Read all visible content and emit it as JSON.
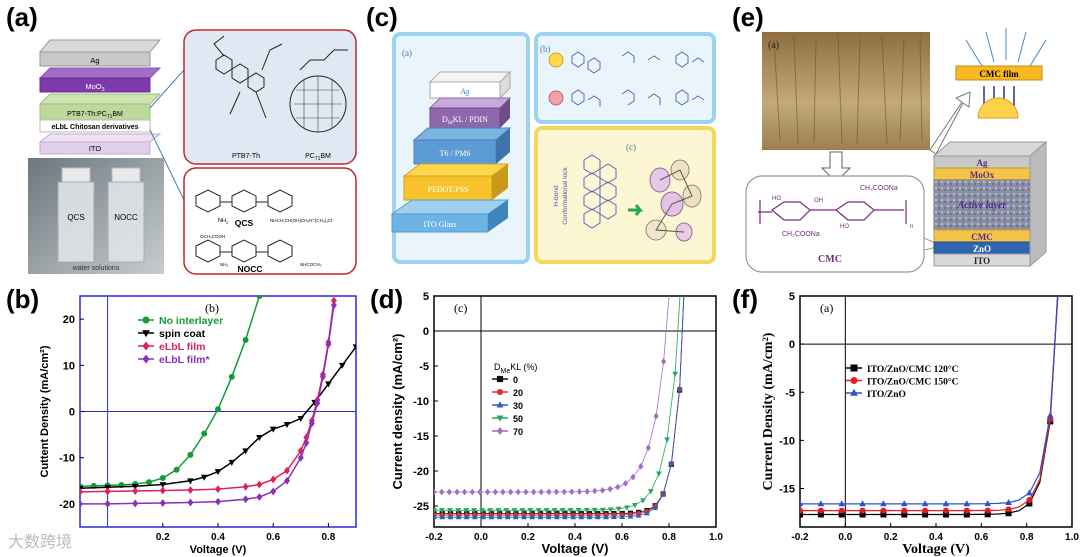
{
  "figure_labels": {
    "a": "(a)",
    "b": "(b)",
    "c": "(c)",
    "d": "(d)",
    "e": "(e)",
    "f": "(f)"
  },
  "panel_a": {
    "layers": [
      "Ag",
      "MoO",
      "PTB7-Th:PC",
      "eLbL Chitosan derivatives",
      "ITO"
    ],
    "layer_subscripts": [
      "3",
      "71",
      "BM"
    ],
    "mol1": "PTB7-Th",
    "mol2": "PC",
    "mol2_sub": "71",
    "mol2_suffix": "BM",
    "vial1": "QCS",
    "vial2": "NOCC",
    "photo_caption": "water solutions",
    "chem1_label": "QCS",
    "chem2_label": "NOCC",
    "chem1_sub": "NH",
    "chem1_n": "2",
    "chem1_tail": "NHCH₂CH(OH)CH₂N⁺(CH₃)₃Cl⁻",
    "chem2_top": "OCH₂COOH",
    "chem2_tail": "NHCOCH₃",
    "chem2_nh": "NH₂"
  },
  "panel_c": {
    "sub_a": "(a)",
    "sub_b": "(b)",
    "sub_c": "(c)",
    "layers": [
      "Ag",
      "D",
      "KL / PDIN",
      "T6 / PM6",
      "PEDOT:PSS",
      "ITO Glass"
    ],
    "layer_sub": "M",
    "lock_label_1": "H-bond",
    "lock_label_2": "Conformational lock"
  },
  "panel_e": {
    "sub_a": "(a)",
    "film": "CMC film",
    "layers": [
      "Ag",
      "MoOx",
      "Active layer",
      "CMC",
      "ZnO",
      "ITO"
    ],
    "cmc_label": "CMC",
    "group1": "CH₂COONa",
    "group2": "CH₂COONa",
    "ho1": "HO",
    "oh1": "OH",
    "ho2": "HO",
    "n_sub": "n"
  },
  "chart_data": [
    {
      "id": "b",
      "type": "line",
      "inner_label": "(b)",
      "xlabel": "Voltage (V)",
      "ylabel": "Cuttent Density (mA/cm²)",
      "xlim": [
        -0.1,
        0.9
      ],
      "ylim": [
        -25,
        25
      ],
      "xticks": [
        0.2,
        0.4,
        0.6,
        0.8
      ],
      "xtick_labels": [
        "0.2",
        "0.4",
        "0.6",
        "0.8"
      ],
      "yticks": [
        -20,
        -10,
        0,
        10,
        20
      ],
      "ytick_labels": [
        "-20",
        "-10",
        "0",
        "10",
        "20"
      ],
      "legend_position": "upper-left",
      "series": [
        {
          "name": "No interlayer",
          "color": "#159b35",
          "marker": "circle",
          "x": [
            -0.1,
            -0.05,
            0,
            0.05,
            0.1,
            0.15,
            0.2,
            0.25,
            0.3,
            0.35,
            0.4,
            0.45,
            0.5,
            0.55
          ],
          "y": [
            -16.2,
            -16.1,
            -16.0,
            -15.9,
            -15.7,
            -15.3,
            -14.4,
            -12.6,
            -9.4,
            -4.8,
            0.5,
            7.5,
            15.5,
            25.0
          ]
        },
        {
          "name": "spin coat",
          "color": "#000000",
          "marker": "triangle-down",
          "x": [
            -0.1,
            0,
            0.1,
            0.2,
            0.3,
            0.35,
            0.4,
            0.45,
            0.5,
            0.55,
            0.6,
            0.65,
            0.7,
            0.75,
            0.8,
            0.85,
            0.9
          ],
          "y": [
            -16.6,
            -16.4,
            -16.2,
            -15.8,
            -15.0,
            -14.2,
            -13.0,
            -11.0,
            -8.5,
            -5.6,
            -3.8,
            -2.8,
            -1.5,
            2.0,
            6.0,
            10.0,
            14.0
          ]
        },
        {
          "name": "eLbL film",
          "color": "#e0205a",
          "marker": "diamond",
          "x": [
            -0.1,
            0,
            0.1,
            0.2,
            0.3,
            0.4,
            0.5,
            0.55,
            0.6,
            0.65,
            0.7,
            0.72,
            0.74,
            0.76,
            0.78,
            0.8,
            0.82
          ],
          "y": [
            -17.4,
            -17.3,
            -17.2,
            -17.1,
            -17.0,
            -16.8,
            -16.3,
            -15.8,
            -14.7,
            -12.8,
            -8.5,
            -5.6,
            -2.0,
            2.5,
            8.0,
            15.0,
            24.0
          ]
        },
        {
          "name": "eLbL film*",
          "color": "#8a2fbf",
          "marker": "diamond",
          "x": [
            -0.1,
            0,
            0.1,
            0.2,
            0.3,
            0.4,
            0.5,
            0.55,
            0.6,
            0.65,
            0.7,
            0.72,
            0.74,
            0.76,
            0.78,
            0.8,
            0.82
          ],
          "y": [
            -20.0,
            -20.0,
            -19.9,
            -19.8,
            -19.7,
            -19.5,
            -19.0,
            -18.5,
            -17.3,
            -15.0,
            -10.0,
            -6.8,
            -2.6,
            1.8,
            7.5,
            14.5,
            23.0
          ]
        }
      ]
    },
    {
      "id": "d",
      "type": "scatter",
      "inner_label": "(c)",
      "xlabel": "Voltage (V)",
      "ylabel": "Current density (mA/cm²)",
      "xlim": [
        -0.2,
        1.0
      ],
      "ylim": [
        -28,
        5
      ],
      "xticks": [
        -0.2,
        0.0,
        0.2,
        0.4,
        0.6,
        0.8,
        1.0
      ],
      "xtick_labels": [
        "-0.2",
        "0.0",
        "0.2",
        "0.4",
        "0.6",
        "0.8",
        "1.0"
      ],
      "yticks": [
        -25,
        -20,
        -15,
        -10,
        -5,
        0,
        5
      ],
      "ytick_labels": [
        "-25",
        "-20",
        "-15",
        "-10",
        "-5",
        "0",
        "5"
      ],
      "legend_title": "D",
      "legend_title_sub": "Me",
      "legend_title_suffix": "KL (%)",
      "legend_position": "middle-left",
      "series": [
        {
          "name": "0",
          "color": "#111111",
          "marker": "square",
          "jsc": -26.1,
          "voc": 0.86,
          "ff": 0.72
        },
        {
          "name": "20",
          "color": "#e53030",
          "marker": "circle",
          "jsc": -26.3,
          "voc": 0.86,
          "ff": 0.71
        },
        {
          "name": "30",
          "color": "#2a5fc0",
          "marker": "triangle-up",
          "jsc": -26.6,
          "voc": 0.86,
          "ff": 0.7
        },
        {
          "name": "50",
          "color": "#22a860",
          "marker": "triangle-down",
          "jsc": -25.6,
          "voc": 0.84,
          "ff": 0.58
        },
        {
          "name": "70",
          "color": "#a46cc2",
          "marker": "diamond",
          "jsc": -23.0,
          "voc": 0.79,
          "ff": 0.5
        }
      ]
    },
    {
      "id": "f",
      "type": "line",
      "inner_label": "(a)",
      "xlabel": "Voltage (V)",
      "ylabel": "Current Density (mA/cm²)",
      "xlim": [
        -0.2,
        1.0
      ],
      "ylim": [
        -19,
        5
      ],
      "xticks": [
        -0.2,
        0.0,
        0.2,
        0.4,
        0.6,
        0.8,
        1.0
      ],
      "xtick_labels": [
        "-0.2",
        "0.0",
        "0.2",
        "0.4",
        "0.6",
        "0.8",
        "1.0"
      ],
      "yticks": [
        -15,
        -10,
        -5,
        0,
        5
      ],
      "ytick_labels": [
        "-15",
        "-10",
        "-5",
        "0",
        "5"
      ],
      "legend_position": "middle-left",
      "series": [
        {
          "name": "ITO/ZnO/CMC 120°C",
          "color": "#000000",
          "marker": "square",
          "jsc": -17.7,
          "voc": 0.93,
          "ff": 0.67
        },
        {
          "name": "ITO/ZnO/CMC 150°C",
          "color": "#e02020",
          "marker": "circle",
          "jsc": -17.3,
          "voc": 0.93,
          "ff": 0.67
        },
        {
          "name": "ITO/ZnO",
          "color": "#2f4fd0",
          "marker": "triangle-up",
          "jsc": -16.6,
          "voc": 0.93,
          "ff": 0.66
        }
      ]
    }
  ],
  "watermark": "大数跨境"
}
